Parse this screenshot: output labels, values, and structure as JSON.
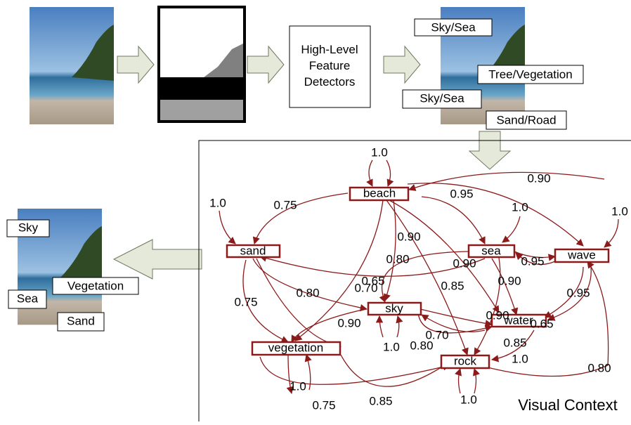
{
  "pipeline": {
    "detector": "High-Level Feature Detectors",
    "detections": [
      "Sky/Sea",
      "Tree/Vegetation",
      "Sky/Sea",
      "Sand/Road"
    ]
  },
  "output_labels": [
    "Sky",
    "Vegetation",
    "Sea",
    "Sand"
  ],
  "graph": {
    "title": "Visual Context",
    "nodes": [
      "beach",
      "sand",
      "sea",
      "wave",
      "sky",
      "water",
      "vegetation",
      "rock"
    ],
    "weights": [
      "1.0",
      "0.90",
      "0.95",
      "1.0",
      "0.75",
      "1.0",
      "1.0",
      "0.90",
      "0.80",
      "0.90",
      "0.95",
      "0.65",
      "0.70",
      "0.90",
      "0.80",
      "0.85",
      "0.95",
      "0.75",
      "0.90",
      "0.65",
      "0.90",
      "0.70",
      "0.85",
      "1.0",
      "0.80",
      "1.0",
      "0.80",
      "1.0",
      "0.75",
      "0.85",
      "1.0"
    ]
  }
}
